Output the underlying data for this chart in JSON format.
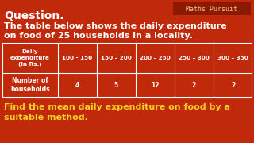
{
  "bg_color": "#c0290a",
  "title_text": "Question.",
  "title_color": "#ffffff",
  "brand_text": "Maths Pursuit",
  "brand_bg": "#8b1a00",
  "brand_text_color": "#f0c080",
  "subtitle_line1": "The table below shows the daily expenditure",
  "subtitle_line2": "on food of 25 households in a locality.",
  "subtitle_color": "#ffffff",
  "col_headers": [
    "Daily\nexpenditure\n(in Rs.)",
    "100 - 150",
    "150 – 200",
    "200 – 250",
    "250 – 300",
    "300 – 350"
  ],
  "row_label": "Number of\nhouseholds",
  "row_values": [
    "4",
    "5",
    "12",
    "2",
    "2"
  ],
  "table_border_color": "#ffffff",
  "footer_line1": "Find the mean daily expenditure on food by a",
  "footer_line2": "suitable method.",
  "footer_color": "#f5d020"
}
